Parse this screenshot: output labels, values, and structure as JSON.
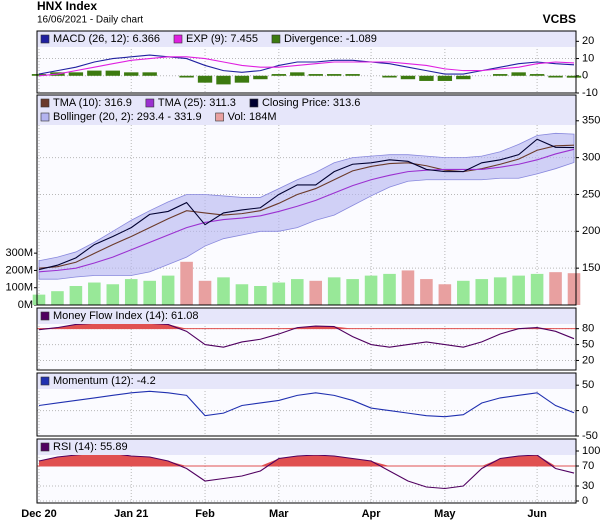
{
  "chart_data": {
    "type": "stock-panels",
    "title": "HNX Index",
    "subtitle": "16/06/2021 - Daily chart",
    "source": "VCBS",
    "categories": [
      "Dec 20",
      null,
      null,
      null,
      null,
      "Jan 21",
      null,
      null,
      null,
      "Feb",
      null,
      null,
      null,
      "Mar",
      null,
      null,
      null,
      null,
      "Apr",
      null,
      null,
      null,
      "May",
      null,
      null,
      null,
      null,
      "Jun",
      null,
      null
    ],
    "panels": [
      {
        "type": "line",
        "ylim": [
          -10,
          26
        ],
        "yticks": [
          -10,
          0,
          10,
          20
        ],
        "series": [
          {
            "name": "MACD (26, 12): 6.366",
            "color": "#2020a0",
            "style": "line",
            "values": [
              1,
              3,
              5,
              8,
              10,
              11,
              12,
              11,
              10,
              6,
              3,
              2,
              3,
              6,
              8,
              8,
              9,
              9,
              8,
              7,
              5,
              3,
              1,
              1,
              3,
              5,
              7,
              8,
              7,
              6.366
            ]
          },
          {
            "name": "EXP (9): 7.455",
            "color": "#e020e0",
            "style": "line",
            "values": [
              0,
              1,
              3,
              5,
              7,
              9,
              10,
              11,
              11,
              10,
              8,
              6,
              5,
              5,
              6,
              7,
              8,
              8,
              8,
              8,
              7,
              6,
              4,
              3,
              3,
              4,
              5,
              7,
              8,
              7.455
            ]
          },
          {
            "name": "Divergence: -1.089",
            "color": "#3c7a10",
            "style": "bar",
            "values": [
              1,
              2,
              2,
              3,
              3,
              2,
              2,
              0,
              -1,
              -4,
              -5,
              -4,
              -2,
              1,
              2,
              1,
              1,
              1,
              0,
              -1,
              -2,
              -3,
              -3,
              -2,
              0,
              1,
              2,
              1,
              -1,
              -1.089
            ]
          }
        ]
      },
      {
        "type": "line",
        "ylim": [
          100,
          385
        ],
        "yticks": [
          150,
          200,
          250,
          300,
          350
        ],
        "y2lim": [
          0,
          1215
        ],
        "y2ticks": [
          {
            "value": 0,
            "label": "0M"
          },
          {
            "value": 100,
            "label": "100M"
          },
          {
            "value": 200,
            "label": "200M"
          },
          {
            "value": 300,
            "label": "300M"
          }
        ],
        "series": [
          {
            "name": "TMA (10): 316.9",
            "color": "#6b3a2a",
            "style": "line",
            "values": [
              150,
              152,
              158,
              170,
              182,
              193,
              205,
              217,
              228,
              225,
              222,
              224,
              228,
              238,
              250,
              258,
              270,
              282,
              288,
              292,
              293,
              289,
              283,
              281,
              285,
              291,
              298,
              310,
              316,
              316.9
            ]
          },
          {
            "name": "TMA (25): 311.3",
            "color": "#9b30d0",
            "style": "line",
            "values": [
              145,
              147,
              150,
              157,
              165,
              175,
              185,
              195,
              205,
              212,
              216,
              218,
              221,
              227,
              234,
              242,
              252,
              262,
              270,
              276,
              281,
              283,
              284,
              284,
              284,
              287,
              291,
              297,
              305,
              311.3
            ]
          },
          {
            "name": "Closing Price: 313.6",
            "color": "#000030",
            "style": "line",
            "values": [
              148,
              154,
              164,
              182,
              193,
              205,
              223,
              227,
              239,
              209,
              225,
              229,
              232,
              250,
              263,
              263,
              281,
              291,
              293,
              297,
              295,
              284,
              281,
              281,
              293,
              297,
              304,
              325,
              314,
              313.6
            ]
          },
          {
            "name": "Bollinger (20, 2): 293.4 - 331.9",
            "color": "#b4b4f0",
            "style": "band",
            "upper": [
              160,
              165,
              172,
              185,
              200,
              215,
              228,
              240,
              250,
              250,
              248,
              246,
              246,
              258,
              270,
              280,
              293,
              300,
              302,
              304,
              304,
              302,
              300,
              300,
              302,
              308,
              318,
              330,
              333,
              331.9
            ],
            "lower": [
              135,
              135,
              138,
              140,
              140,
              140,
              145,
              155,
              165,
              180,
              190,
              195,
              200,
              200,
              205,
              215,
              222,
              235,
              248,
              260,
              268,
              270,
              270,
              270,
              270,
              272,
              272,
              278,
              285,
              293.4
            ]
          },
          {
            "name": "Vol: 184M",
            "color": "#e8a0a0",
            "style": "bar",
            "axis": "y2",
            "values": [
              60,
              80,
              110,
              130,
              120,
              150,
              140,
              170,
              250,
              140,
              160,
              120,
              110,
              130,
              150,
              140,
              160,
              150,
              170,
              180,
              200,
              150,
              120,
              140,
              150,
              160,
              170,
              180,
              190,
              184
            ],
            "colors": [
              "#98e898",
              "#98e898",
              "#98e898",
              "#98e898",
              "#98e898",
              "#98e898",
              "#98e898",
              "#98e898",
              "#e8a0a0",
              "#e8a0a0",
              "#98e898",
              "#98e898",
              "#98e898",
              "#98e898",
              "#98e898",
              "#e8a0a0",
              "#98e898",
              "#98e898",
              "#98e898",
              "#98e898",
              "#e8a0a0",
              "#e8a0a0",
              "#e8a0a0",
              "#98e898",
              "#98e898",
              "#98e898",
              "#98e898",
              "#98e898",
              "#e8a0a0",
              "#e8a0a0"
            ]
          }
        ]
      },
      {
        "type": "line",
        "ylim": [
          2,
          119
        ],
        "yticks": [
          20,
          50,
          80
        ],
        "fill_above": 80,
        "fill_color": "#e05050",
        "series": [
          {
            "name": "Money Flow Index (14): 61.08",
            "color": "#500060",
            "style": "line",
            "values": [
              78,
              82,
              88,
              90,
              92,
              91,
              90,
              88,
              75,
              50,
              45,
              55,
              60,
              70,
              82,
              85,
              84,
              65,
              50,
              45,
              50,
              55,
              50,
              45,
              55,
              70,
              80,
              82,
              75,
              61.08
            ]
          }
        ]
      },
      {
        "type": "line",
        "ylim": [
          -50,
          74
        ],
        "yticks": [
          -50,
          0,
          50
        ],
        "series": [
          {
            "name": "Momentum (12): -4.2",
            "color": "#2030b0",
            "style": "line",
            "values": [
              10,
              15,
              20,
              25,
              30,
              35,
              38,
              35,
              30,
              -10,
              -5,
              10,
              15,
              20,
              30,
              35,
              30,
              20,
              5,
              0,
              -5,
              -10,
              -12,
              -8,
              15,
              25,
              30,
              35,
              10,
              -4.2
            ]
          }
        ]
      },
      {
        "type": "line",
        "ylim": [
          -4,
          124
        ],
        "yticks": [
          0,
          30,
          70,
          100
        ],
        "fill_above": 70,
        "fill_color": "#e05050",
        "series": [
          {
            "name": "RSI (14): 55.89",
            "color": "#500060",
            "style": "line",
            "values": [
              80,
              88,
              92,
              95,
              95,
              90,
              88,
              80,
              65,
              40,
              45,
              50,
              60,
              85,
              90,
              92,
              90,
              85,
              80,
              60,
              40,
              28,
              25,
              30,
              65,
              85,
              90,
              92,
              65,
              55.89
            ]
          }
        ]
      }
    ]
  }
}
